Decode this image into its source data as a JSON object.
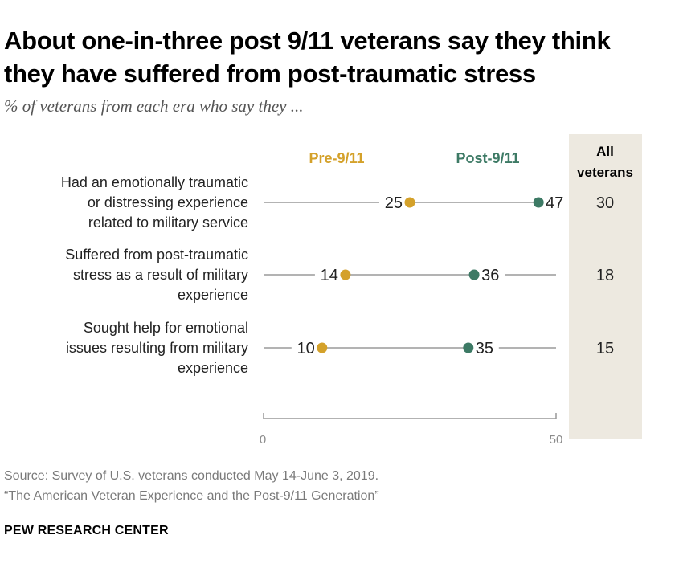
{
  "title": "About one-in-three post 9/11 veterans say they think they have suffered from post-traumatic stress",
  "subtitle": "% of veterans from each era who say they ...",
  "chart_data": {
    "type": "dot",
    "xlim": [
      0,
      50
    ],
    "xticks": [
      "0",
      "50"
    ],
    "series": [
      {
        "name": "Pre-9/11",
        "color": "#d4a12a"
      },
      {
        "name": "Post-9/11",
        "color": "#3d7a65"
      }
    ],
    "all_column_header": [
      "All",
      "veterans"
    ],
    "rows": [
      {
        "label": [
          "Had an emotionally traumatic",
          "or distressing experience",
          "related to military service"
        ],
        "pre": 25,
        "post": 47,
        "all": 30
      },
      {
        "label": [
          "Suffered from post-traumatic",
          "stress as a result of military",
          "experience"
        ],
        "pre": 14,
        "post": 36,
        "all": 18
      },
      {
        "label": [
          "Sought help for emotional",
          "issues resulting from military",
          "experience"
        ],
        "pre": 10,
        "post": 35,
        "all": 15
      }
    ]
  },
  "source_lines": [
    "Source: Survey of U.S. veterans conducted May 14-June 3, 2019.",
    "“The American Veteran Experience and the Post-9/11 Generation”"
  ],
  "brand": "PEW RESEARCH CENTER"
}
